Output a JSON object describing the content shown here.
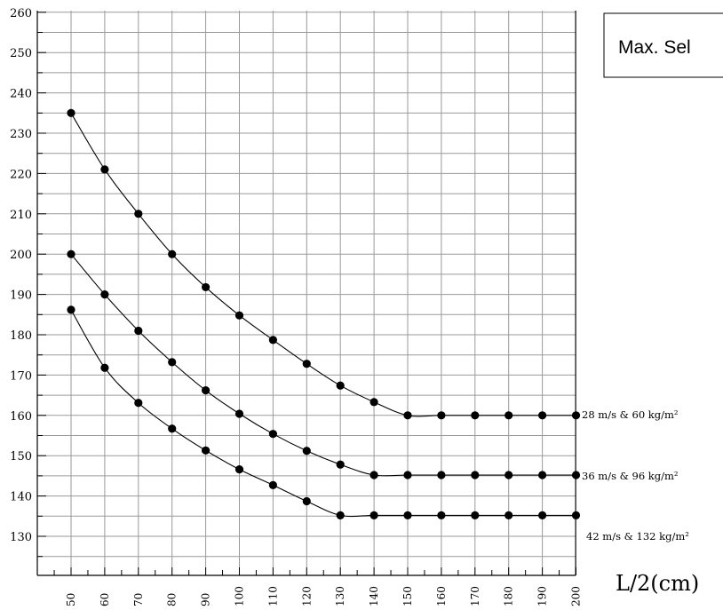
{
  "chart_data": {
    "type": "line",
    "title": "",
    "legend_box_text": "Max. Sel",
    "xlabel": "L/2(cm)",
    "ylabel": "",
    "x": [
      50,
      60,
      70,
      80,
      90,
      100,
      110,
      120,
      130,
      140,
      150,
      160,
      170,
      180,
      190,
      200
    ],
    "xlim": [
      45,
      200
    ],
    "ylim": [
      120,
      260
    ],
    "yticks": [
      130,
      140,
      150,
      160,
      170,
      180,
      190,
      200,
      210,
      220,
      230,
      240,
      250,
      260
    ],
    "grid": true,
    "series": [
      {
        "name": "28 m/s  & 60 kg/m²",
        "values": [
          235,
          221,
          210,
          200,
          191.8,
          184.8,
          178.7,
          172.8,
          167.4,
          163.3,
          160,
          160,
          160,
          160,
          160,
          160
        ]
      },
      {
        "name": "36 m/s  & 96 kg/m²",
        "values": [
          200,
          190,
          181,
          173.2,
          166.2,
          160.4,
          155.4,
          151.2,
          147.8,
          145.2,
          145.2,
          145.2,
          145.2,
          145.2,
          145.2,
          145.2
        ]
      },
      {
        "name": "42 m/s  & 132 kg/m²",
        "values": [
          186.2,
          171.8,
          163.1,
          156.7,
          151.3,
          146.6,
          142.7,
          138.7,
          135.2,
          135.2,
          135.2,
          135.2,
          135.2,
          135.2,
          135.2,
          135.2
        ]
      }
    ]
  }
}
